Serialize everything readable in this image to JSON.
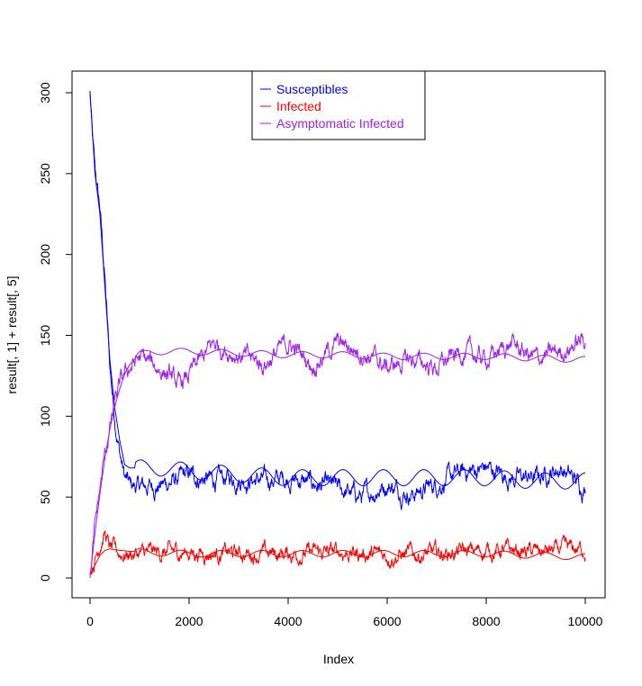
{
  "chart_data": {
    "type": "line",
    "title": "",
    "xlabel": "Index",
    "ylabel": "result[, 1] + result[, 5]",
    "xlim": [
      0,
      10000
    ],
    "ylim": [
      0,
      300
    ],
    "x_ticks": [
      0,
      2000,
      4000,
      6000,
      8000,
      10000
    ],
    "y_ticks": [
      0,
      50,
      100,
      150,
      200,
      250,
      300
    ],
    "legend_position": "top-center",
    "series": [
      {
        "name": "Susceptibles",
        "color": "#0000ff",
        "noisy_points": [
          [
            0,
            300
          ],
          [
            50,
            270
          ],
          [
            100,
            250
          ],
          [
            200,
            228
          ],
          [
            300,
            185
          ],
          [
            400,
            130
          ],
          [
            500,
            100
          ],
          [
            600,
            78
          ],
          [
            700,
            62
          ],
          [
            800,
            57
          ],
          [
            1000,
            56
          ],
          [
            1500,
            58
          ],
          [
            2000,
            63
          ],
          [
            2500,
            60
          ],
          [
            3000,
            62
          ],
          [
            3500,
            60
          ],
          [
            4000,
            62
          ],
          [
            4500,
            58
          ],
          [
            5000,
            55
          ],
          [
            5500,
            50
          ],
          [
            6000,
            58
          ],
          [
            6500,
            52
          ],
          [
            7000,
            58
          ],
          [
            7500,
            65
          ],
          [
            8000,
            68
          ],
          [
            8500,
            62
          ],
          [
            9000,
            62
          ],
          [
            9500,
            68
          ],
          [
            10000,
            55
          ]
        ],
        "mean_points": [
          [
            0,
            300
          ],
          [
            100,
            250
          ],
          [
            200,
            225
          ],
          [
            300,
            180
          ],
          [
            400,
            135
          ],
          [
            500,
            105
          ],
          [
            600,
            85
          ],
          [
            700,
            70
          ],
          [
            800,
            68
          ],
          [
            1000,
            68
          ],
          [
            1500,
            68
          ],
          [
            2000,
            66
          ],
          [
            3000,
            64
          ],
          [
            4000,
            62
          ],
          [
            5000,
            62
          ],
          [
            6000,
            62
          ],
          [
            7000,
            62
          ],
          [
            8000,
            62
          ],
          [
            9000,
            60
          ],
          [
            10000,
            60
          ]
        ]
      },
      {
        "name": "Infected",
        "color": "#ff0000",
        "noisy_points": [
          [
            0,
            5
          ],
          [
            100,
            12
          ],
          [
            200,
            22
          ],
          [
            300,
            28
          ],
          [
            400,
            18
          ],
          [
            600,
            15
          ],
          [
            1000,
            15
          ],
          [
            2000,
            16
          ],
          [
            3000,
            15
          ],
          [
            4000,
            15
          ],
          [
            5000,
            16
          ],
          [
            6000,
            14
          ],
          [
            7000,
            15
          ],
          [
            8000,
            17
          ],
          [
            9000,
            16
          ],
          [
            10000,
            18
          ]
        ],
        "mean_points": [
          [
            0,
            2
          ],
          [
            100,
            8
          ],
          [
            200,
            14
          ],
          [
            300,
            17
          ],
          [
            400,
            18
          ],
          [
            600,
            17
          ],
          [
            1000,
            16
          ],
          [
            2000,
            15
          ],
          [
            3000,
            15
          ],
          [
            4000,
            15
          ],
          [
            5000,
            15
          ],
          [
            6000,
            15
          ],
          [
            7000,
            15
          ],
          [
            8000,
            15
          ],
          [
            9000,
            14
          ],
          [
            10000,
            13
          ]
        ]
      },
      {
        "name": "Asymptomatic Infected",
        "color": "#a020f0",
        "noisy_points": [
          [
            0,
            0
          ],
          [
            100,
            30
          ],
          [
            200,
            55
          ],
          [
            300,
            75
          ],
          [
            400,
            92
          ],
          [
            500,
            108
          ],
          [
            600,
            118
          ],
          [
            700,
            125
          ],
          [
            800,
            130
          ],
          [
            1000,
            136
          ],
          [
            1500,
            128
          ],
          [
            1800,
            118
          ],
          [
            2000,
            125
          ],
          [
            2500,
            145
          ],
          [
            3000,
            138
          ],
          [
            3500,
            132
          ],
          [
            4000,
            145
          ],
          [
            4500,
            132
          ],
          [
            5000,
            145
          ],
          [
            5500,
            140
          ],
          [
            6000,
            130
          ],
          [
            6500,
            135
          ],
          [
            7000,
            130
          ],
          [
            7500,
            140
          ],
          [
            8000,
            135
          ],
          [
            8500,
            145
          ],
          [
            9000,
            135
          ],
          [
            9500,
            140
          ],
          [
            10000,
            148
          ]
        ],
        "mean_points": [
          [
            0,
            0
          ],
          [
            100,
            28
          ],
          [
            200,
            52
          ],
          [
            300,
            74
          ],
          [
            400,
            92
          ],
          [
            500,
            106
          ],
          [
            600,
            117
          ],
          [
            700,
            126
          ],
          [
            800,
            132
          ],
          [
            1000,
            138
          ],
          [
            1200,
            140
          ],
          [
            1500,
            140
          ],
          [
            2000,
            140
          ],
          [
            3000,
            139
          ],
          [
            4000,
            138
          ],
          [
            5000,
            138
          ],
          [
            6000,
            137
          ],
          [
            7000,
            137
          ],
          [
            8000,
            137
          ],
          [
            9000,
            136
          ],
          [
            10000,
            135
          ]
        ]
      }
    ]
  }
}
